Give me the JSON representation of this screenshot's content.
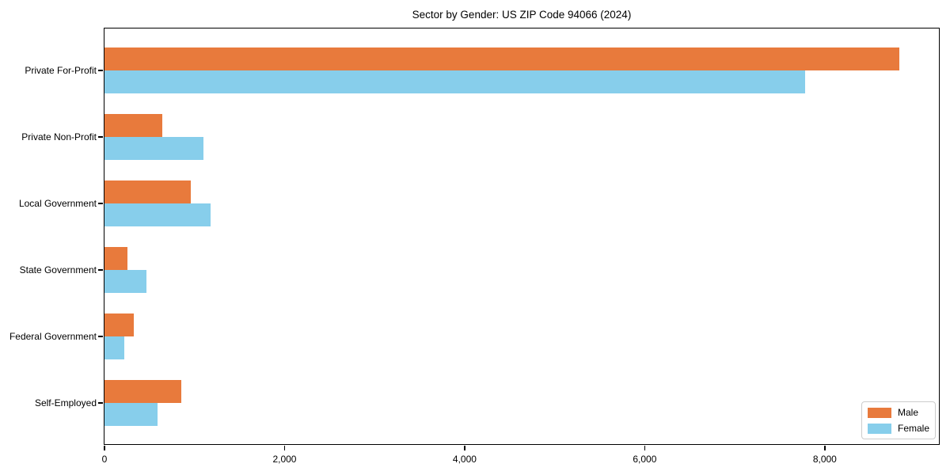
{
  "title": "Sector by Gender: US ZIP Code 94066 (2024)",
  "colors": {
    "male": "#E87A3C",
    "female": "#87CEEB",
    "spine": "#000000",
    "legend_border": "#CCCCCC"
  },
  "legend": {
    "male_label": "Male",
    "female_label": "Female",
    "position": "lower right"
  },
  "chart_data": {
    "type": "bar",
    "orientation": "horizontal",
    "title": "Sector by Gender: US ZIP Code 94066 (2024)",
    "categories": [
      "Private For-Profit",
      "Private Non-Profit",
      "Local Government",
      "State Government",
      "Federal Government",
      "Self-Employed"
    ],
    "series": [
      {
        "name": "Male",
        "color": "#E87A3C",
        "values": [
          8830,
          645,
          960,
          255,
          325,
          855
        ]
      },
      {
        "name": "Female",
        "color": "#87CEEB",
        "values": [
          7780,
          1100,
          1180,
          465,
          220,
          590
        ]
      }
    ],
    "xlabel": "",
    "ylabel": "",
    "xlim": [
      0,
      9285
    ],
    "x_ticks": [
      {
        "value": 0,
        "label": "0"
      },
      {
        "value": 2000,
        "label": "2,000"
      },
      {
        "value": 4000,
        "label": "4,000"
      },
      {
        "value": 6000,
        "label": "6,000"
      },
      {
        "value": 8000,
        "label": "8,000"
      }
    ],
    "grid": false,
    "legend_position": "lower right"
  }
}
